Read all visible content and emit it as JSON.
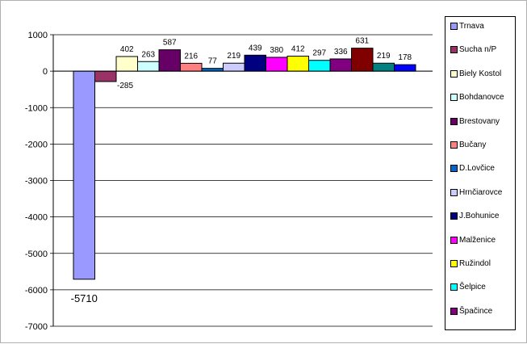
{
  "chart_data": {
    "type": "bar",
    "title": "",
    "xlabel": "",
    "ylabel": "",
    "ylim": [
      -7000,
      1000
    ],
    "yticks": [
      1000,
      0,
      -1000,
      -2000,
      -3000,
      -4000,
      -5000,
      -6000,
      -7000
    ],
    "grid": true,
    "legend_position": "right",
    "series": [
      {
        "name": "Trnava",
        "value": -5710,
        "color": "#9999ff"
      },
      {
        "name": "Sucha n/P",
        "value": -285,
        "color": "#993366"
      },
      {
        "name": "Biely Kostol",
        "value": 402,
        "color": "#ffffcc"
      },
      {
        "name": "Bohdanovce",
        "value": 263,
        "color": "#ccffff"
      },
      {
        "name": "Brestovany",
        "value": 587,
        "color": "#660066"
      },
      {
        "name": "Bučany",
        "value": 216,
        "color": "#ff8080"
      },
      {
        "name": "D.Lovčice",
        "value": 77,
        "color": "#0066cc"
      },
      {
        "name": "Hrnčiarovce",
        "value": 219,
        "color": "#ccccff"
      },
      {
        "name": "J.Bohunice",
        "value": 439,
        "color": "#000080"
      },
      {
        "name": "Malženice",
        "value": 380,
        "color": "#ff00ff"
      },
      {
        "name": "Ružindol",
        "value": 412,
        "color": "#ffff00"
      },
      {
        "name": "Šelpice",
        "value": 297,
        "color": "#00ffff"
      },
      {
        "name": "Špačince",
        "value": 336,
        "color": "#800080"
      },
      {
        "name": "",
        "value": 631,
        "color": "#800000"
      },
      {
        "name": "",
        "value": 219,
        "color": "#008080"
      },
      {
        "name": "",
        "value": 178,
        "color": "#0000ff"
      }
    ],
    "data_labels": [
      "-5710",
      "-285",
      "402",
      "263",
      "587",
      "216",
      "77",
      "219",
      "439",
      "380",
      "412",
      "297",
      "336",
      "631",
      "219",
      "178"
    ]
  }
}
